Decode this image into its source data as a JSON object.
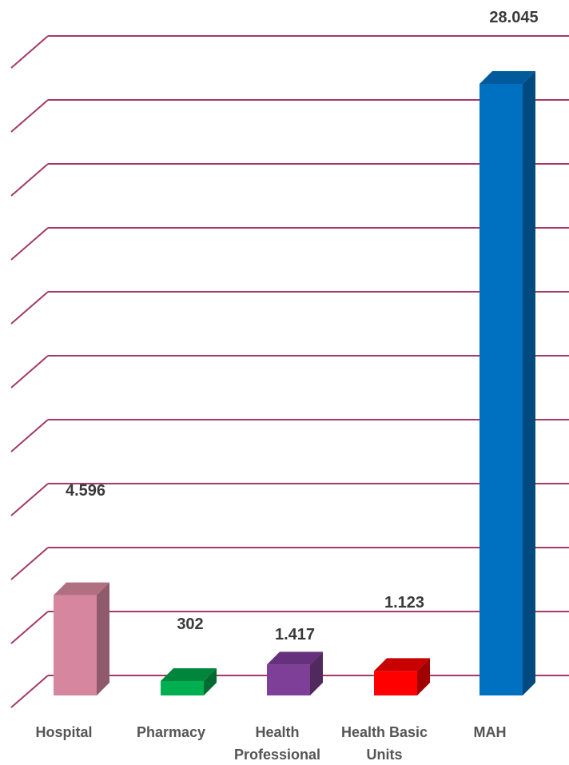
{
  "chart_data": {
    "type": "bar",
    "categories": [
      "Hospital",
      "Pharmacy",
      "Health Professional",
      "Health Basic Units",
      "MAH"
    ],
    "category_lines": [
      [
        "Hospital"
      ],
      [
        "Pharmacy"
      ],
      [
        "Health",
        "Professional"
      ],
      [
        "Health Basic",
        "Units"
      ],
      [
        "MAH"
      ]
    ],
    "values": [
      4596,
      302,
      1417,
      1123,
      28045
    ],
    "value_labels": [
      "4.596",
      "302",
      "1.417",
      "1.123",
      "28.045"
    ],
    "ylim": [
      0,
      32000
    ],
    "grid": true,
    "legend": "none",
    "title": "",
    "xlabel": "",
    "ylabel": "",
    "bar_colors": [
      {
        "front": "#d6869f",
        "side": "#8f5b6c",
        "top": "#b07082"
      },
      {
        "front": "#00b050",
        "side": "#006b30",
        "top": "#00853d"
      },
      {
        "front": "#7e3f98",
        "side": "#52295f",
        "top": "#66317c"
      },
      {
        "front": "#ff0000",
        "side": "#a00000",
        "top": "#c80000"
      },
      {
        "front": "#0070c0",
        "side": "#004a80",
        "top": "#005a9c"
      }
    ],
    "gridline_color": "#a3386a"
  }
}
